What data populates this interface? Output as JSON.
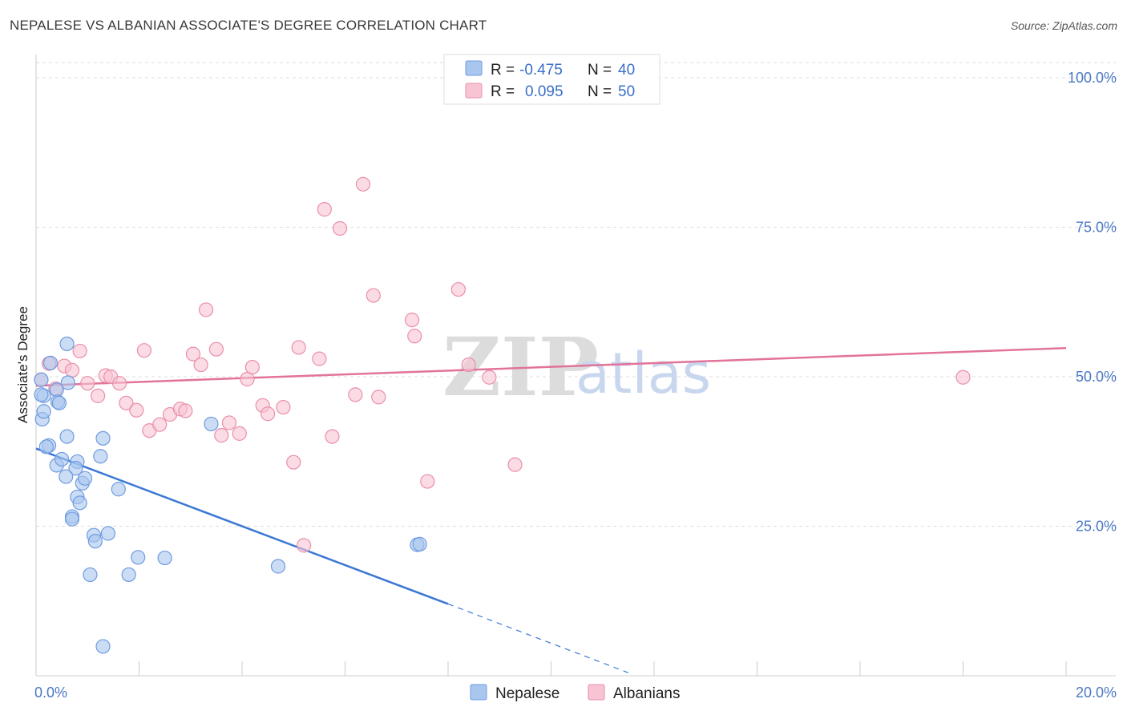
{
  "title": "NEPALESE VS ALBANIAN ASSOCIATE'S DEGREE CORRELATION CHART",
  "source": "Source: ZipAtlas.com",
  "watermark": {
    "zip": "ZIP",
    "atlas": "atlas"
  },
  "legend": {
    "rows": [
      {
        "r_label": "R =",
        "r_value": "-0.475",
        "n_label": "N =",
        "n_value": "40",
        "color": "#a9c6ef",
        "stroke": "#6f9be0"
      },
      {
        "r_label": "R =",
        "r_value": "0.095",
        "n_label": "N =",
        "n_value": "50",
        "color": "#f8c3d2",
        "stroke": "#e98fab"
      }
    ]
  },
  "bottom_legend": [
    {
      "label": "Nepalese",
      "color": "#a9c6ef",
      "stroke": "#6f9be0"
    },
    {
      "label": "Albanians",
      "color": "#f8c3d2",
      "stroke": "#e98fab"
    }
  ],
  "chart_data": {
    "type": "scatter",
    "title": "NEPALESE VS ALBANIAN ASSOCIATE'S DEGREE CORRELATION CHART",
    "xlabel": "",
    "ylabel": "Associate's Degree",
    "xlim": [
      0,
      20
    ],
    "ylim": [
      0,
      100
    ],
    "x_tick_labels": [
      "0.0%",
      "20.0%"
    ],
    "y_ticks": [
      25,
      50,
      75,
      100
    ],
    "y_tick_labels": [
      "25.0%",
      "50.0%",
      "75.0%",
      "100.0%"
    ],
    "series": [
      {
        "name": "Nepalese",
        "color": "#6f9be0",
        "fill": "#a9c6ef",
        "points": [
          [
            0.1,
            49.5
          ],
          [
            0.15,
            46.8
          ],
          [
            0.12,
            42.9
          ],
          [
            0.15,
            44.2
          ],
          [
            0.28,
            52.3
          ],
          [
            0.6,
            55.5
          ],
          [
            0.62,
            49.0
          ],
          [
            0.4,
            47.8
          ],
          [
            0.42,
            45.8
          ],
          [
            0.45,
            45.6
          ],
          [
            0.25,
            38.5
          ],
          [
            0.2,
            38.3
          ],
          [
            0.4,
            35.2
          ],
          [
            0.6,
            40.0
          ],
          [
            0.5,
            36.2
          ],
          [
            0.8,
            35.8
          ],
          [
            0.77,
            34.7
          ],
          [
            0.58,
            33.3
          ],
          [
            0.9,
            32.2
          ],
          [
            0.95,
            33.0
          ],
          [
            1.3,
            39.7
          ],
          [
            1.25,
            36.7
          ],
          [
            0.8,
            29.9
          ],
          [
            0.85,
            28.9
          ],
          [
            1.6,
            31.2
          ],
          [
            0.7,
            26.6
          ],
          [
            0.7,
            26.2
          ],
          [
            1.12,
            23.5
          ],
          [
            1.15,
            22.5
          ],
          [
            1.4,
            23.8
          ],
          [
            1.98,
            19.8
          ],
          [
            2.5,
            19.7
          ],
          [
            1.05,
            16.9
          ],
          [
            1.8,
            16.9
          ],
          [
            1.3,
            4.9
          ],
          [
            3.4,
            42.1
          ],
          [
            4.7,
            18.3
          ],
          [
            7.4,
            21.9
          ],
          [
            7.45,
            22.0
          ],
          [
            0.1,
            47.0
          ]
        ],
        "trend": {
          "x": [
            0.0,
            8.0
          ],
          "y": [
            38.0,
            12.0
          ],
          "dashed_to": [
            11.5,
            0.5
          ]
        }
      },
      {
        "name": "Albanians",
        "color": "#e98fab",
        "fill": "#f8c3d2",
        "points": [
          [
            0.1,
            49.5
          ],
          [
            0.25,
            52.2
          ],
          [
            0.38,
            48.0
          ],
          [
            0.55,
            51.8
          ],
          [
            0.7,
            51.1
          ],
          [
            0.85,
            54.3
          ],
          [
            1.0,
            48.9
          ],
          [
            1.2,
            46.8
          ],
          [
            1.35,
            50.2
          ],
          [
            1.45,
            50.0
          ],
          [
            1.62,
            48.9
          ],
          [
            1.75,
            45.6
          ],
          [
            1.95,
            44.4
          ],
          [
            2.1,
            54.4
          ],
          [
            2.2,
            41.0
          ],
          [
            2.4,
            42.0
          ],
          [
            2.6,
            43.7
          ],
          [
            2.8,
            44.6
          ],
          [
            2.9,
            44.3
          ],
          [
            3.05,
            53.8
          ],
          [
            3.2,
            52.0
          ],
          [
            3.3,
            61.2
          ],
          [
            3.5,
            54.6
          ],
          [
            3.6,
            40.2
          ],
          [
            3.75,
            42.3
          ],
          [
            3.95,
            40.5
          ],
          [
            4.1,
            49.6
          ],
          [
            4.2,
            51.6
          ],
          [
            4.4,
            45.2
          ],
          [
            4.5,
            43.8
          ],
          [
            4.8,
            44.9
          ],
          [
            5.0,
            35.7
          ],
          [
            5.1,
            54.9
          ],
          [
            5.2,
            21.8
          ],
          [
            5.5,
            53.0
          ],
          [
            5.6,
            78.0
          ],
          [
            5.75,
            40.0
          ],
          [
            5.9,
            74.8
          ],
          [
            6.2,
            47.0
          ],
          [
            6.35,
            82.2
          ],
          [
            6.55,
            63.6
          ],
          [
            6.65,
            46.6
          ],
          [
            7.3,
            59.5
          ],
          [
            7.35,
            56.8
          ],
          [
            7.6,
            32.5
          ],
          [
            8.2,
            64.6
          ],
          [
            8.4,
            52.0
          ],
          [
            8.8,
            49.9
          ],
          [
            9.3,
            35.3
          ],
          [
            18.0,
            49.9
          ]
        ],
        "trend": {
          "x": [
            0.0,
            20.0
          ],
          "y": [
            48.5,
            54.8
          ]
        }
      }
    ]
  }
}
